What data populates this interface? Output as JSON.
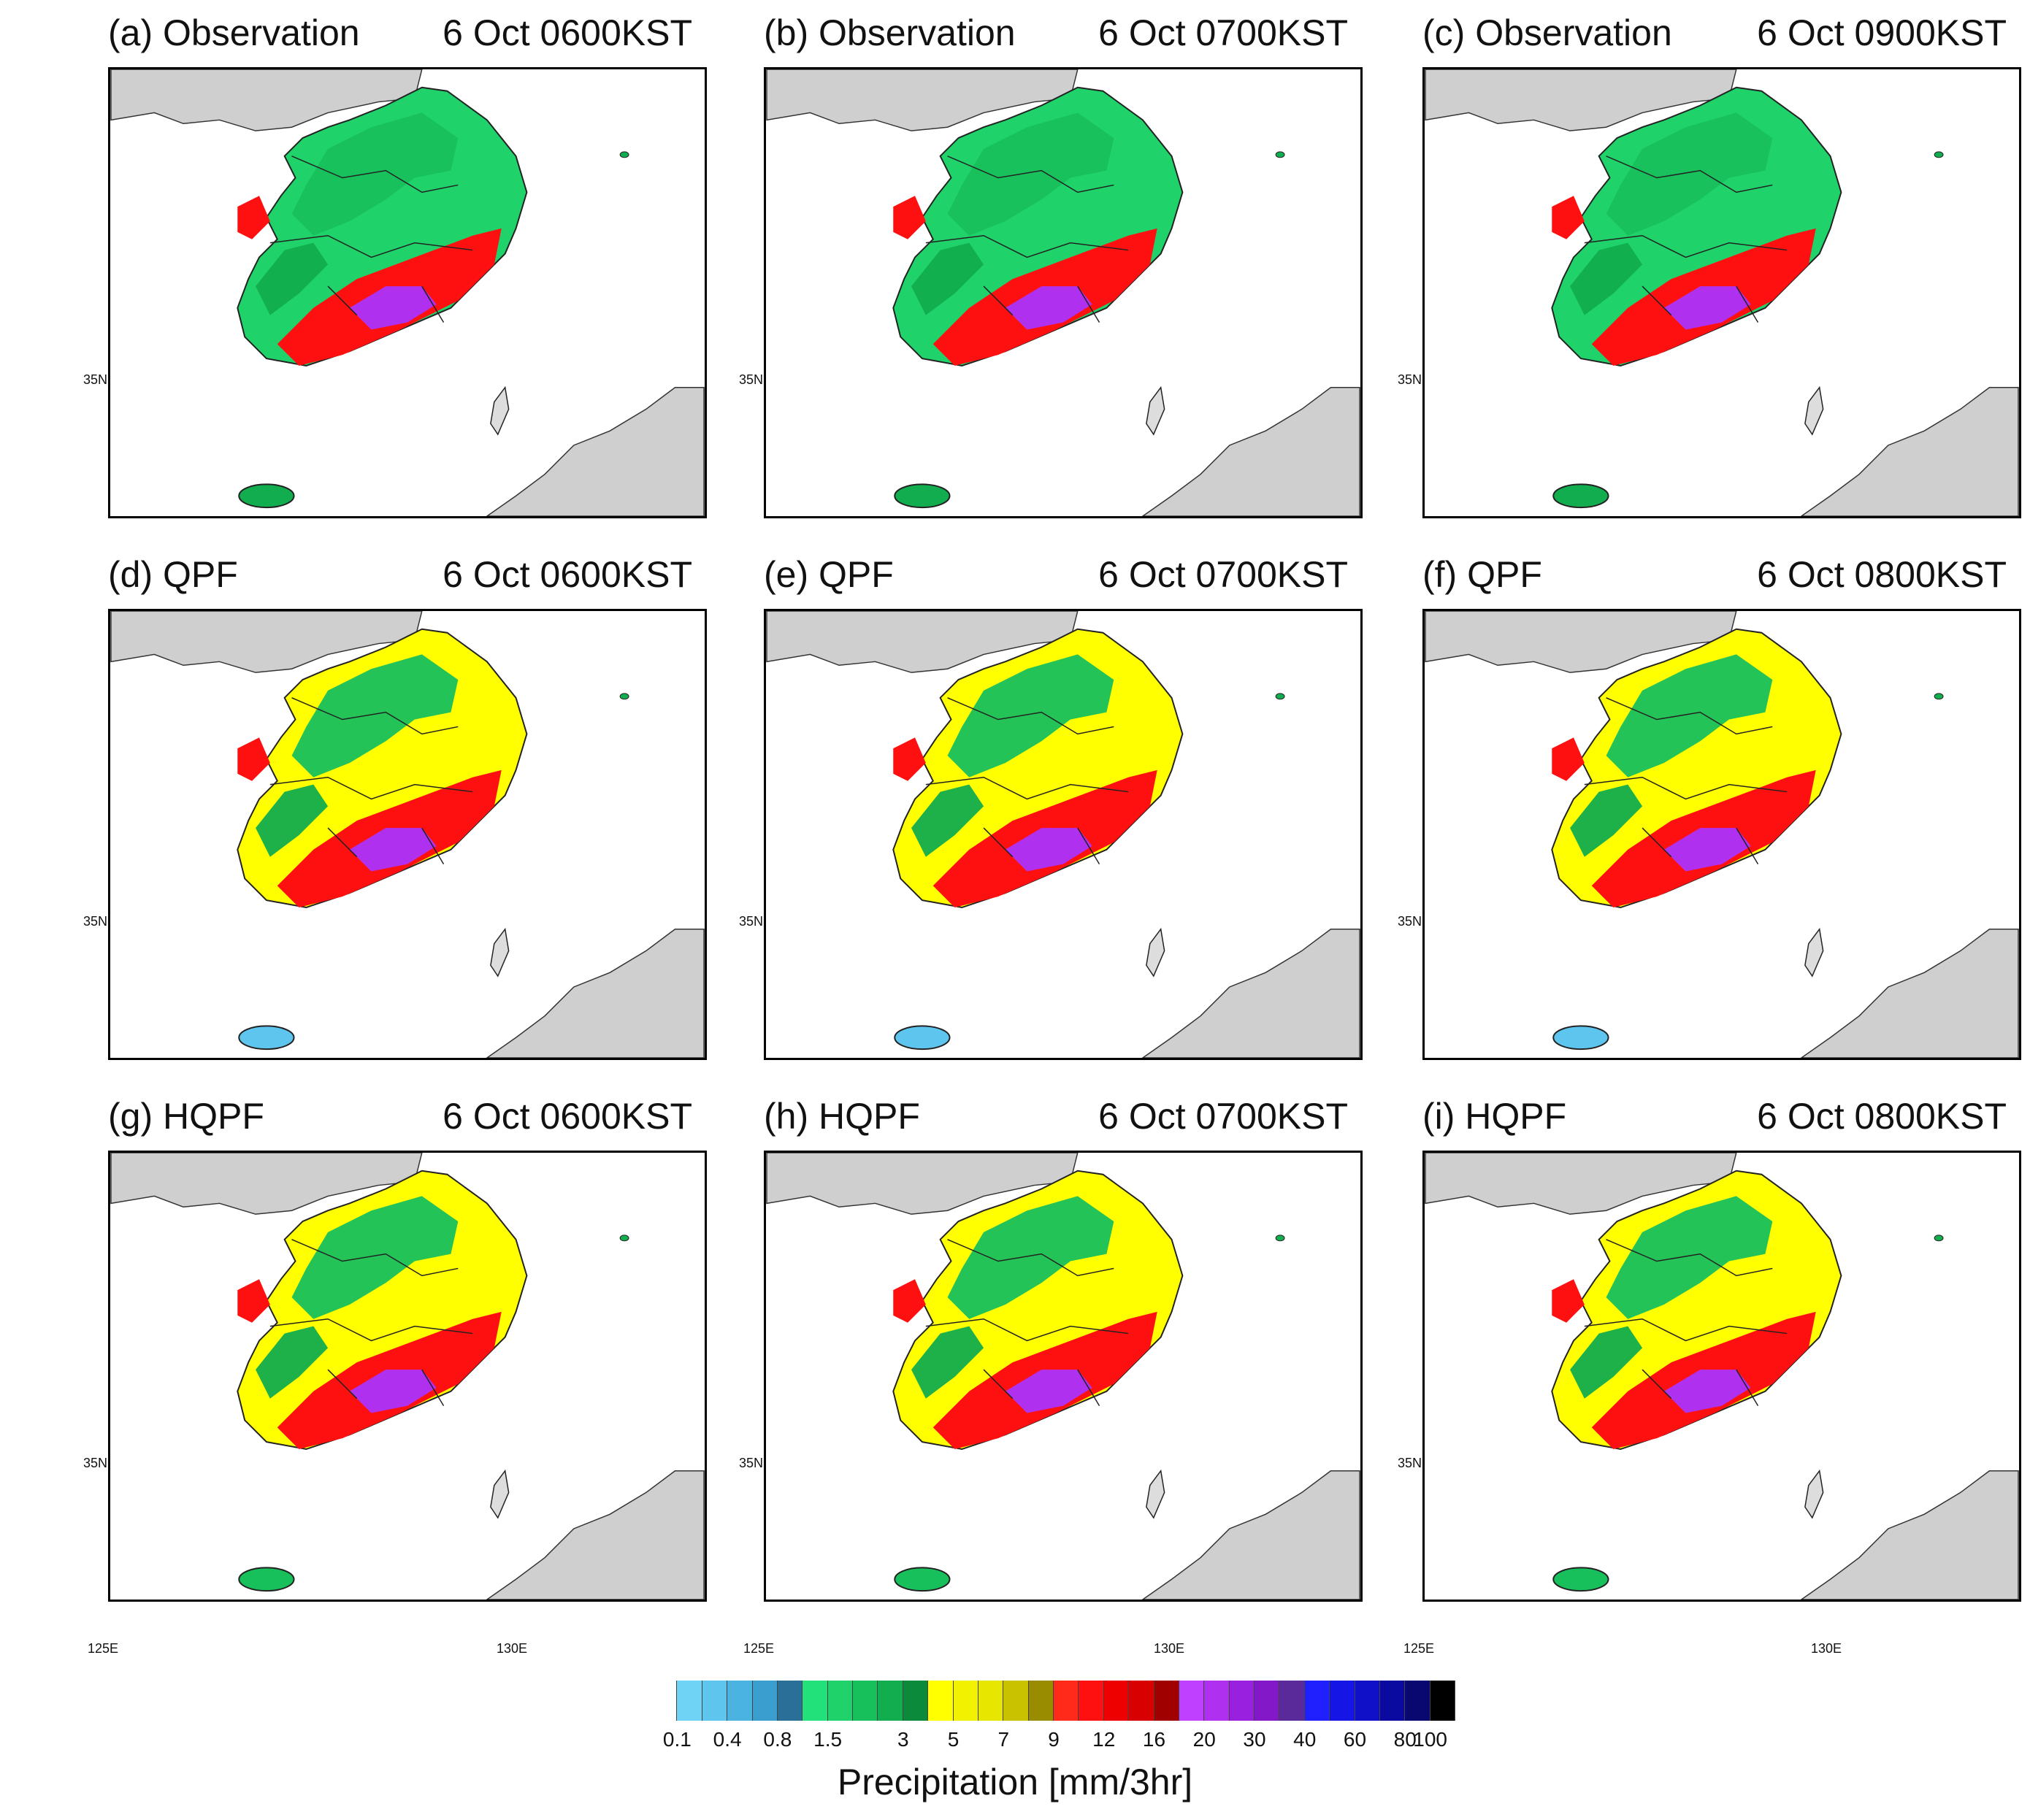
{
  "figure": {
    "panels": [
      {
        "label": "(a) Observation",
        "time": "6 Oct 0600KST"
      },
      {
        "label": "(b) Observation",
        "time": "6 Oct 0700KST"
      },
      {
        "label": "(c) Observation",
        "time": "6 Oct 0900KST"
      },
      {
        "label": "(d) QPF",
        "time": "6 Oct 0600KST"
      },
      {
        "label": "(e) QPF",
        "time": "6 Oct 0700KST"
      },
      {
        "label": "(f) QPF",
        "time": "6 Oct 0800KST"
      },
      {
        "label": "(g) HQPF",
        "time": "6 Oct 0600KST"
      },
      {
        "label": "(h) HQPF",
        "time": "6 Oct 0700KST"
      },
      {
        "label": "(i) HQPF",
        "time": "6 Oct 0800KST"
      }
    ],
    "lat_label": "35N",
    "lon_labels": [
      "125E",
      "130E"
    ]
  },
  "colorbar": {
    "title": "Precipitation [mm/3hr]",
    "tick_labels": [
      "0.1",
      "0.4",
      "0.8",
      "1.5",
      "3",
      "5",
      "7",
      "9",
      "12",
      "16",
      "20",
      "30",
      "40",
      "60",
      "80",
      "100"
    ],
    "colors": [
      "#ffffff",
      "#6fd3f5",
      "#5ec6ee",
      "#4bb3e0",
      "#3a9fcf",
      "#2a6f97",
      "#22e07a",
      "#1fd26a",
      "#18c05c",
      "#12ad4e",
      "#0a8a3a",
      "#ffff00",
      "#f2f200",
      "#e6e600",
      "#c9c200",
      "#9a8c00",
      "#ff2a1a",
      "#ff1010",
      "#ee0000",
      "#d80000",
      "#a00000",
      "#c040ff",
      "#b030f0",
      "#9a20e0",
      "#8318c8",
      "#5a2a9a",
      "#2020ff",
      "#1515e6",
      "#1010c8",
      "#0a0aa0",
      "#080870",
      "#000000"
    ]
  }
}
